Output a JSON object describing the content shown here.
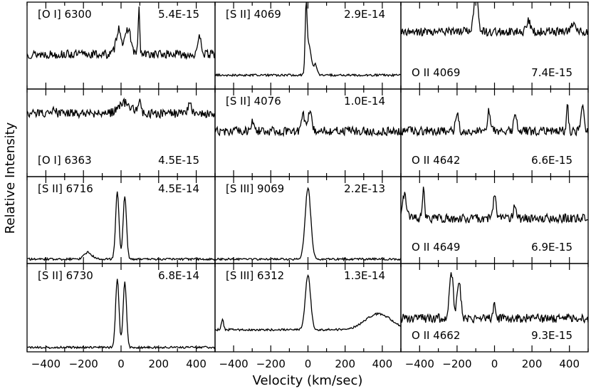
{
  "chart_data": {
    "type": "line",
    "ylabel": "Relative Intensity",
    "xlabel": "Velocity (km/sec)",
    "xlim": [
      -500,
      500
    ],
    "xticks": [
      -400,
      -200,
      0,
      200,
      400
    ],
    "grid": false,
    "panels": [
      {
        "col": 0,
        "row": 0,
        "line": "[O I] 6300",
        "flux": "5.4E-15",
        "label_pos": "top",
        "baseline": 0.4,
        "features": [
          [
            -12,
            0.3,
            14
          ],
          [
            38,
            0.3,
            14
          ],
          [
            95,
            0.55,
            4
          ],
          [
            420,
            0.22,
            8
          ]
        ]
      },
      {
        "col": 0,
        "row": 1,
        "line": "[O I] 6363",
        "flux": "4.5E-15",
        "label_pos": "bottom",
        "baseline": 0.72,
        "features": [
          [
            20,
            0.12,
            35
          ],
          [
            98,
            0.14,
            6
          ],
          [
            -355,
            0.08,
            6
          ],
          [
            365,
            0.12,
            10
          ]
        ]
      },
      {
        "col": 0,
        "row": 2,
        "line": "[S II] 6716",
        "flux": "4.5E-14",
        "label_pos": "top",
        "baseline": 0.05,
        "features": [
          [
            -20,
            0.78,
            9
          ],
          [
            20,
            0.72,
            9
          ],
          [
            -175,
            0.08,
            20
          ]
        ]
      },
      {
        "col": 0,
        "row": 3,
        "line": "[S II] 6730",
        "flux": "6.8E-14",
        "label_pos": "top",
        "baseline": 0.05,
        "features": [
          [
            -20,
            0.78,
            9
          ],
          [
            20,
            0.74,
            9
          ]
        ]
      },
      {
        "col": 1,
        "row": 0,
        "line": "[S II] 4069",
        "flux": "2.9E-14",
        "label_pos": "top",
        "baseline": 0.16,
        "features": [
          [
            -10,
            0.7,
            5
          ],
          [
            5,
            0.35,
            12
          ],
          [
            40,
            0.12,
            10
          ]
        ]
      },
      {
        "col": 1,
        "row": 1,
        "line": "[S II] 4076",
        "flux": "1.0E-14",
        "label_pos": "top",
        "baseline": 0.52,
        "features": [
          [
            -25,
            0.18,
            10
          ],
          [
            10,
            0.22,
            10
          ],
          [
            -300,
            0.1,
            8
          ]
        ]
      },
      {
        "col": 1,
        "row": 2,
        "line": "[S III] 9069",
        "flux": "2.2E-13",
        "label_pos": "top",
        "baseline": 0.05,
        "features": [
          [
            0,
            0.82,
            15
          ]
        ]
      },
      {
        "col": 1,
        "row": 3,
        "line": "[S III] 6312",
        "flux": "1.3E-14",
        "label_pos": "top",
        "baseline": 0.25,
        "features": [
          [
            0,
            0.62,
            14
          ],
          [
            -460,
            0.12,
            6
          ],
          [
            380,
            0.18,
            70
          ]
        ]
      },
      {
        "col": 2,
        "row": 0,
        "line": "O II 4069",
        "flux": "7.4E-15",
        "label_pos": "bottom",
        "baseline": 0.66,
        "features": [
          [
            -100,
            0.5,
            10
          ],
          [
            180,
            0.12,
            10
          ],
          [
            420,
            0.1,
            8
          ]
        ]
      },
      {
        "col": 2,
        "row": 1,
        "line": "O II 4642",
        "flux": "6.6E-15",
        "label_pos": "bottom",
        "baseline": 0.52,
        "features": [
          [
            -200,
            0.2,
            8
          ],
          [
            -30,
            0.22,
            8
          ],
          [
            110,
            0.18,
            8
          ],
          [
            390,
            0.28,
            5
          ],
          [
            470,
            0.3,
            8
          ]
        ]
      },
      {
        "col": 2,
        "row": 2,
        "line": "O II 4649",
        "flux": "6.9E-15",
        "label_pos": "bottom",
        "baseline": 0.52,
        "features": [
          [
            -480,
            0.28,
            10
          ],
          [
            -380,
            0.32,
            6
          ],
          [
            0,
            0.3,
            7
          ],
          [
            110,
            0.15,
            8
          ]
        ]
      },
      {
        "col": 2,
        "row": 3,
        "line": "O II 4662",
        "flux": "9.3E-15",
        "label_pos": "bottom",
        "baseline": 0.38,
        "features": [
          [
            -230,
            0.5,
            10
          ],
          [
            -190,
            0.4,
            10
          ],
          [
            0,
            0.15,
            8
          ]
        ]
      }
    ]
  }
}
